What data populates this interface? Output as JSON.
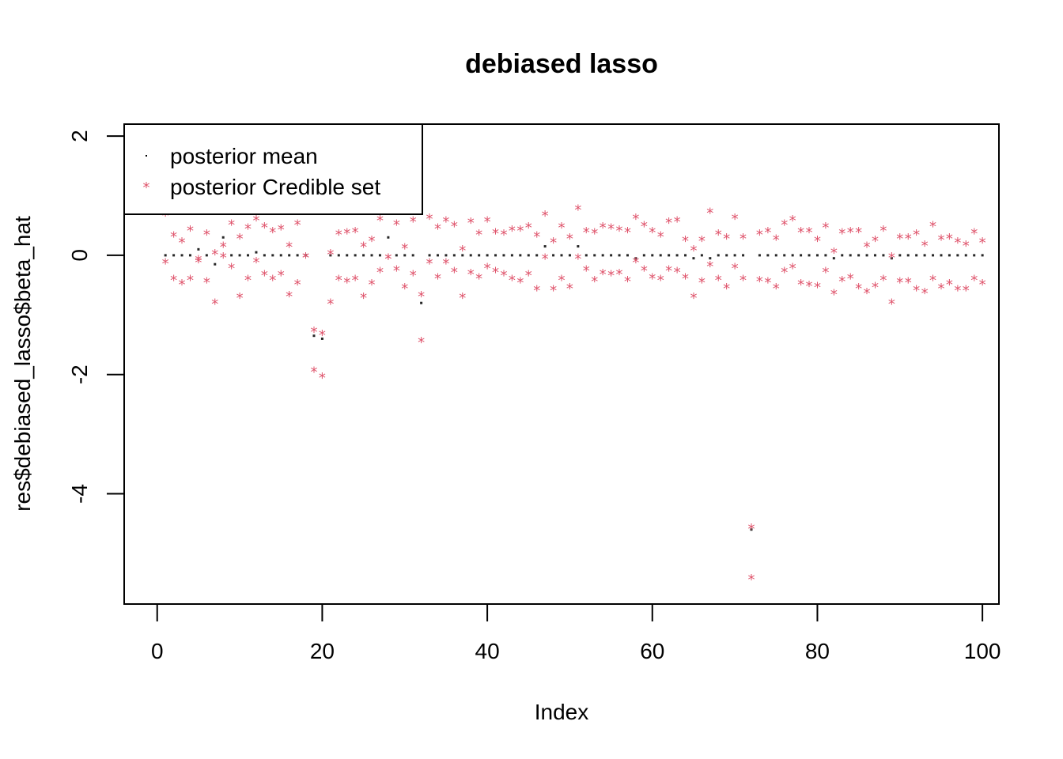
{
  "chart_data": {
    "type": "scatter",
    "title": "debiased lasso",
    "xlabel": "Index",
    "ylabel": "res$debiased_lasso$beta_hat",
    "xlim": [
      -4,
      102
    ],
    "ylim": [
      -5.85,
      2.2
    ],
    "x_ticks": [
      0,
      20,
      40,
      60,
      80,
      100
    ],
    "y_ticks": [
      2,
      0,
      -2,
      -4
    ],
    "x_tick_labels": [
      "0",
      "20",
      "40",
      "60",
      "80",
      "100"
    ],
    "y_tick_labels": [
      "2",
      "0",
      "-2",
      "-4"
    ],
    "grid": false,
    "legend_position": "top-left",
    "colors": {
      "posterior_mean": "#000000",
      "credible_set": "#DF536B"
    },
    "series": [
      {
        "name": "posterior mean",
        "marker": "dot",
        "x": [
          1,
          2,
          3,
          4,
          5,
          6,
          7,
          8,
          9,
          10,
          11,
          12,
          13,
          14,
          15,
          16,
          17,
          18,
          19,
          20,
          21,
          22,
          23,
          24,
          25,
          26,
          27,
          28,
          29,
          30,
          31,
          32,
          33,
          34,
          35,
          36,
          37,
          38,
          39,
          40,
          41,
          42,
          43,
          44,
          45,
          46,
          47,
          48,
          49,
          50,
          51,
          52,
          53,
          54,
          55,
          56,
          57,
          58,
          59,
          60,
          61,
          62,
          63,
          64,
          65,
          66,
          67,
          68,
          69,
          70,
          71,
          72,
          73,
          74,
          75,
          76,
          77,
          78,
          79,
          80,
          81,
          82,
          83,
          84,
          85,
          86,
          87,
          88,
          89,
          90,
          91,
          92,
          93,
          94,
          95,
          96,
          97,
          98,
          99,
          100
        ],
        "y": [
          0,
          0,
          0,
          0,
          0.1,
          0,
          -0.15,
          0.3,
          0,
          0,
          0,
          0.05,
          0,
          0,
          0,
          0,
          0,
          0,
          -1.35,
          -1.4,
          0,
          0,
          0,
          0,
          0,
          0,
          0,
          0.3,
          0,
          0,
          0,
          -0.8,
          0,
          0,
          0,
          0,
          0,
          0,
          0,
          0,
          0,
          0,
          0,
          0,
          0,
          0,
          0.15,
          0,
          0,
          0,
          0.15,
          0,
          0,
          0,
          0,
          0,
          0,
          -0.05,
          0,
          0,
          0,
          0,
          0,
          0,
          -0.05,
          0,
          -0.05,
          0,
          0,
          0,
          0,
          -4.6,
          0,
          0,
          0,
          0,
          0,
          0,
          0,
          0,
          0,
          -0.05,
          0,
          0,
          0,
          0,
          0,
          0,
          -0.05,
          0,
          0,
          0,
          0,
          0,
          0,
          0,
          0,
          0,
          0,
          0
        ]
      },
      {
        "name": "posterior Credible set",
        "marker": "*",
        "x": [
          1,
          2,
          3,
          4,
          5,
          6,
          7,
          8,
          9,
          10,
          11,
          12,
          13,
          14,
          15,
          16,
          17,
          18,
          19,
          20,
          21,
          22,
          23,
          24,
          25,
          26,
          27,
          28,
          29,
          30,
          31,
          32,
          33,
          34,
          35,
          36,
          37,
          38,
          39,
          40,
          41,
          42,
          43,
          44,
          45,
          46,
          47,
          48,
          49,
          50,
          51,
          52,
          53,
          54,
          55,
          56,
          57,
          58,
          59,
          60,
          61,
          62,
          63,
          64,
          65,
          66,
          67,
          68,
          69,
          70,
          71,
          72,
          73,
          74,
          75,
          76,
          77,
          78,
          79,
          80,
          81,
          82,
          83,
          84,
          85,
          86,
          87,
          88,
          89,
          90,
          91,
          92,
          93,
          94,
          95,
          96,
          97,
          98,
          99,
          100
        ],
        "upper": [
          0.7,
          0.35,
          0.25,
          0.45,
          -0.05,
          0.38,
          0.05,
          0.18,
          0.55,
          0.32,
          0.48,
          0.62,
          0.5,
          0.42,
          0.47,
          0.18,
          0.55,
          0,
          -1.25,
          -1.3,
          0.05,
          0.38,
          0.4,
          0.42,
          0.18,
          0.28,
          0.62,
          -0.02,
          0.55,
          0.15,
          0.6,
          -0.65,
          0.65,
          0.48,
          0.6,
          0.52,
          0.12,
          0.58,
          0.38,
          0.6,
          0.4,
          0.38,
          0.45,
          0.45,
          0.5,
          0.35,
          0.7,
          0.25,
          0.5,
          0.32,
          0.8,
          0.42,
          0.4,
          0.5,
          0.48,
          0.45,
          0.42,
          0.65,
          0.52,
          0.42,
          0.35,
          0.58,
          0.6,
          0.28,
          0.12,
          0.28,
          0.75,
          0.38,
          0.32,
          0.65,
          0.32,
          -4.55,
          0.38,
          0.42,
          0.3,
          0.55,
          0.62,
          0.42,
          0.42,
          0.28,
          0.5,
          0.08,
          0.4,
          0.42,
          0.42,
          0.18,
          0.28,
          0.45,
          0,
          0.32,
          0.32,
          0.38,
          0.2,
          0.52,
          0.3,
          0.32,
          0.25,
          0.2,
          0.4,
          0.25
        ],
        "lower": [
          -0.1,
          -0.38,
          -0.45,
          -0.38,
          -0.08,
          -0.42,
          -0.78,
          0,
          -0.18,
          -0.68,
          -0.38,
          -0.08,
          -0.3,
          -0.38,
          -0.3,
          -0.65,
          -0.45,
          0,
          -1.92,
          -2.02,
          -0.78,
          -0.38,
          -0.42,
          -0.38,
          -0.68,
          -0.45,
          -0.25,
          -0.02,
          -0.22,
          -0.52,
          -0.3,
          -1.42,
          -0.1,
          -0.35,
          -0.1,
          -0.25,
          -0.68,
          -0.28,
          -0.35,
          -0.18,
          -0.25,
          -0.3,
          -0.38,
          -0.42,
          -0.3,
          -0.55,
          -0.02,
          -0.55,
          -0.38,
          -0.52,
          -0.02,
          -0.22,
          -0.4,
          -0.28,
          -0.3,
          -0.28,
          -0.4,
          -0.08,
          -0.22,
          -0.35,
          -0.38,
          -0.22,
          -0.25,
          -0.35,
          -0.68,
          -0.42,
          -0.15,
          -0.38,
          -0.52,
          -0.18,
          -0.38,
          -5.4,
          -0.4,
          -0.42,
          -0.52,
          -0.25,
          -0.18,
          -0.45,
          -0.48,
          -0.5,
          -0.25,
          -0.62,
          -0.4,
          -0.35,
          -0.52,
          -0.6,
          -0.5,
          -0.38,
          -0.78,
          -0.42,
          -0.42,
          -0.55,
          -0.6,
          -0.38,
          -0.52,
          -0.45,
          -0.55,
          -0.55,
          -0.38,
          -0.45
        ]
      }
    ]
  }
}
